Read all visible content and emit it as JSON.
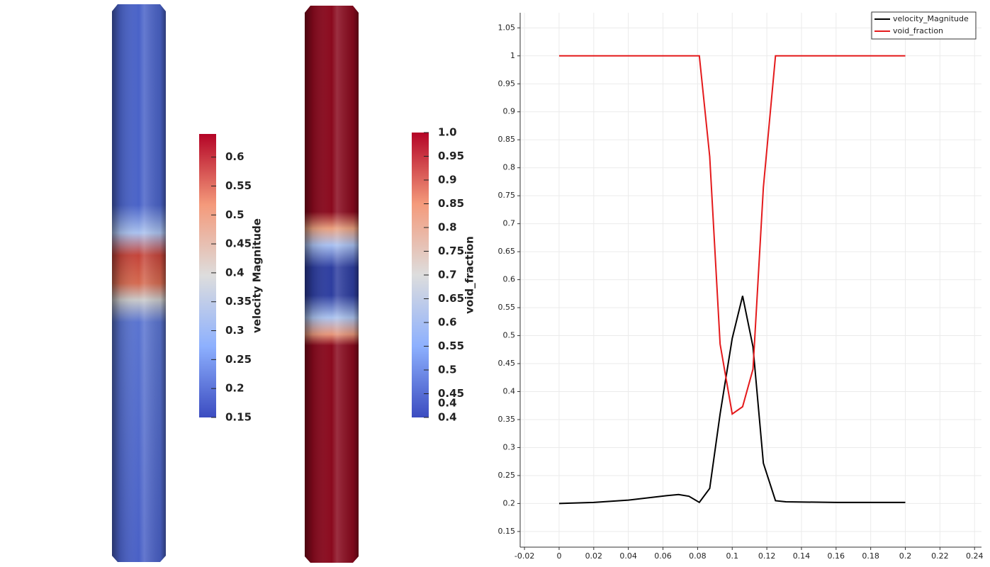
{
  "colorbars": [
    {
      "title": "velocity Magnitude",
      "range": [
        0.15,
        0.64
      ],
      "ticks": [
        0.15,
        0.2,
        0.25,
        0.3,
        0.35,
        0.4,
        0.45,
        0.5,
        0.55,
        0.6
      ]
    },
    {
      "title": "void_fraction",
      "range": [
        0.4,
        1.0
      ],
      "ticks": [
        {
          "value": 0.4,
          "label": "0.4"
        },
        0.4,
        0.45,
        0.5,
        0.55,
        0.6,
        0.65,
        0.7,
        0.75,
        0.8,
        0.85,
        0.9,
        0.95,
        {
          "value": 1.0,
          "label": "1.0"
        }
      ]
    }
  ],
  "chart_data": {
    "type": "line",
    "x": [
      0,
      0.02,
      0.04,
      0.062,
      0.069,
      0.075,
      0.081,
      0.087,
      0.093,
      0.1,
      0.106,
      0.112,
      0.118,
      0.125,
      0.131,
      0.16,
      0.2
    ],
    "series": [
      {
        "name": "velocity_Magnitude",
        "color": "#000000",
        "values": [
          0.2,
          0.202,
          0.206,
          0.214,
          0.216,
          0.213,
          0.202,
          0.227,
          0.36,
          0.495,
          0.571,
          0.48,
          0.272,
          0.205,
          0.203,
          0.202,
          0.202
        ]
      },
      {
        "name": "void_fraction",
        "color": "#e41a1c",
        "values": [
          1,
          1,
          1,
          1,
          1,
          1,
          1,
          0.82,
          0.485,
          0.36,
          0.373,
          0.44,
          0.765,
          1,
          1,
          1,
          1
        ]
      }
    ],
    "xlim": [
      -0.0225,
      0.244
    ],
    "ylim": [
      0.122,
      1.077
    ],
    "xticks": [
      -0.02,
      0,
      0.02,
      0.04,
      0.06,
      0.08,
      0.1,
      0.12,
      0.14,
      0.16,
      0.18,
      0.2,
      0.22,
      0.24
    ],
    "yticks": [
      0.15,
      0.2,
      0.25,
      0.3,
      0.35,
      0.4,
      0.45,
      0.5,
      0.55,
      0.6,
      0.65,
      0.7,
      0.75,
      0.8,
      0.85,
      0.9,
      0.95,
      1,
      1.05
    ],
    "grid": true,
    "legend": "top-right"
  }
}
